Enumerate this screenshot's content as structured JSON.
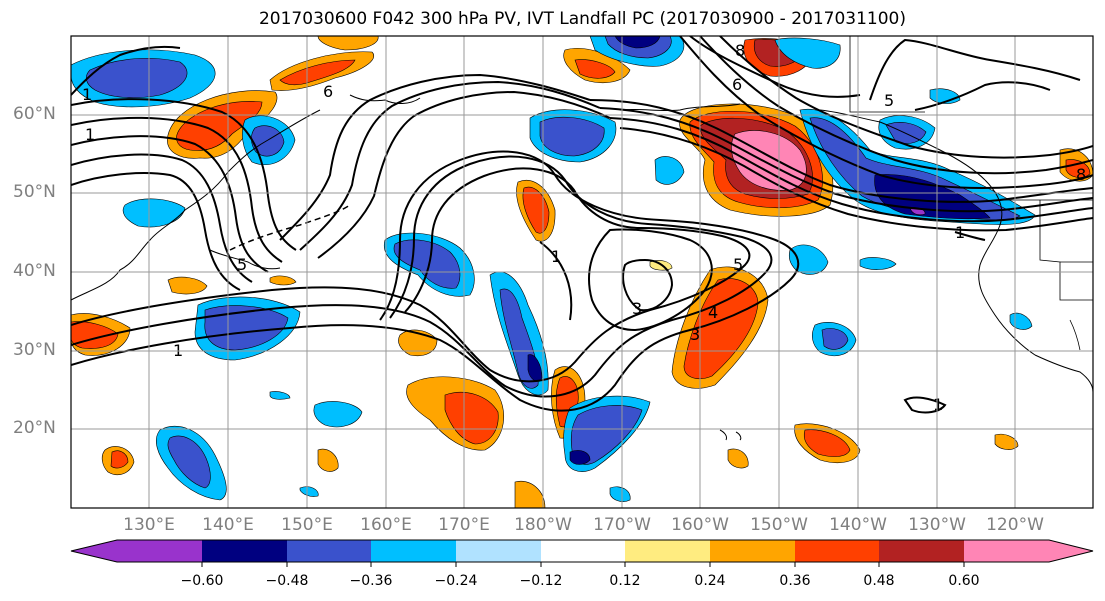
{
  "title": "2017030600 F042 300 hPa PV, IVT Landfall PC (2017030900 - 2017031100)",
  "map": {
    "lat_labels": [
      "60°N",
      "50°N",
      "40°N",
      "30°N",
      "20°N"
    ],
    "lon_labels": [
      "130°E",
      "140°E",
      "150°E",
      "160°E",
      "170°E",
      "180°W",
      "170°W",
      "160°W",
      "150°W",
      "140°W",
      "130°W",
      "120°W"
    ],
    "contour_labels": [
      "1",
      "1",
      "1",
      "1",
      "1",
      "1",
      "3",
      "3",
      "4",
      "5",
      "5",
      "5",
      "6",
      "6",
      "8",
      "8"
    ]
  },
  "colorbar": {
    "ticks": [
      "−0.60",
      "−0.48",
      "−0.36",
      "−0.24",
      "−0.12",
      "0.12",
      "0.24",
      "0.36",
      "0.48",
      "0.60"
    ],
    "colors": [
      "#9933cc",
      "#000080",
      "#3a52cc",
      "#00bfff",
      "#b0e2ff",
      "#ffffff",
      "#ffec80",
      "#ffa500",
      "#ff4000",
      "#b22222",
      "#ff85b5"
    ]
  }
}
